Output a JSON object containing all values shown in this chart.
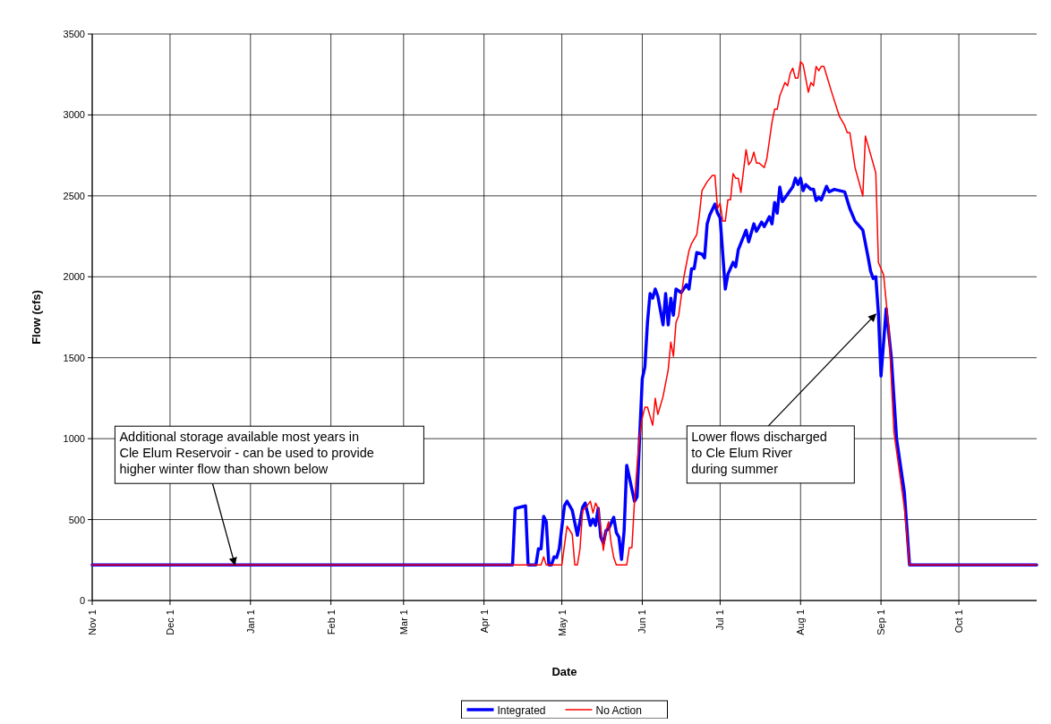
{
  "chart_data": {
    "type": "line",
    "xlabel": "Date",
    "ylabel": "Flow (cfs)",
    "xlim": [
      "2000-11-01",
      "2001-10-31"
    ],
    "xticks": [
      {
        "value": "2000-11-01",
        "label": "Nov 1"
      },
      {
        "value": "2000-12-01",
        "label": "Dec 1"
      },
      {
        "value": "2001-01-01",
        "label": "Jan 1"
      },
      {
        "value": "2001-02-01",
        "label": "Feb 1"
      },
      {
        "value": "2001-03-01",
        "label": "Mar 1"
      },
      {
        "value": "2001-04-01",
        "label": "Apr 1"
      },
      {
        "value": "2001-05-01",
        "label": "May 1"
      },
      {
        "value": "2001-06-01",
        "label": "Jun 1"
      },
      {
        "value": "2001-07-01",
        "label": "Jul 1"
      },
      {
        "value": "2001-08-01",
        "label": "Aug 1"
      },
      {
        "value": "2001-09-01",
        "label": "Sep 1"
      },
      {
        "value": "2001-10-01",
        "label": "Oct 1"
      }
    ],
    "ylim": [
      0,
      3500
    ],
    "yticks": [
      0,
      500,
      1000,
      1500,
      2000,
      2500,
      3000,
      3500
    ],
    "grid": true,
    "legend": "bottom",
    "marker": "none",
    "line_style": "solid",
    "series": [
      {
        "name": "Integrated",
        "color": "#0000ff",
        "x": [
          "2000-11-01",
          "2001-04-12",
          "2001-04-13",
          "2001-04-17",
          "2001-04-18",
          "2001-04-21",
          "2001-04-22",
          "2001-04-23",
          "2001-04-24",
          "2001-04-25",
          "2001-04-26",
          "2001-04-27",
          "2001-04-28",
          "2001-04-29",
          "2001-04-30",
          "2001-05-02",
          "2001-05-03",
          "2001-05-05",
          "2001-05-07",
          "2001-05-09",
          "2001-05-10",
          "2001-05-12",
          "2001-05-13",
          "2001-05-14",
          "2001-05-15",
          "2001-05-16",
          "2001-05-17",
          "2001-05-18",
          "2001-05-19",
          "2001-05-21",
          "2001-05-22",
          "2001-05-23",
          "2001-05-24",
          "2001-05-25",
          "2001-05-26",
          "2001-05-29",
          "2001-05-30",
          "2001-05-31",
          "2001-06-01",
          "2001-06-02",
          "2001-06-03",
          "2001-06-04",
          "2001-06-05",
          "2001-06-06",
          "2001-06-07",
          "2001-06-09",
          "2001-06-10",
          "2001-06-11",
          "2001-06-12",
          "2001-06-13",
          "2001-06-14",
          "2001-06-16",
          "2001-06-18",
          "2001-06-19",
          "2001-06-20",
          "2001-06-21",
          "2001-06-22",
          "2001-06-24",
          "2001-06-25",
          "2001-06-26",
          "2001-06-27",
          "2001-06-29",
          "2001-06-30",
          "2001-07-01",
          "2001-07-03",
          "2001-07-04",
          "2001-07-06",
          "2001-07-07",
          "2001-07-08",
          "2001-07-11",
          "2001-07-12",
          "2001-07-14",
          "2001-07-15",
          "2001-07-17",
          "2001-07-18",
          "2001-07-20",
          "2001-07-21",
          "2001-07-22",
          "2001-07-23",
          "2001-07-24",
          "2001-07-25",
          "2001-07-27",
          "2001-07-29",
          "2001-07-30",
          "2001-07-31",
          "2001-08-01",
          "2001-08-02",
          "2001-08-03",
          "2001-08-05",
          "2001-08-06",
          "2001-08-07",
          "2001-08-08",
          "2001-08-09",
          "2001-08-11",
          "2001-08-12",
          "2001-08-14",
          "2001-08-18",
          "2001-08-20",
          "2001-08-22",
          "2001-08-25",
          "2001-08-27",
          "2001-08-28",
          "2001-08-29",
          "2001-08-30",
          "2001-08-31",
          "2001-09-01",
          "2001-09-03",
          "2001-09-05",
          "2001-09-07",
          "2001-09-10",
          "2001-09-12",
          "2001-10-31"
        ],
        "values": [
          220,
          220,
          569,
          585,
          220,
          220,
          320,
          320,
          520,
          486,
          220,
          220,
          270,
          265,
          320,
          585,
          613,
          558,
          403,
          575,
          602,
          464,
          503,
          464,
          569,
          392,
          354,
          431,
          442,
          514,
          420,
          392,
          254,
          431,
          835,
          613,
          641,
          1017,
          1371,
          1443,
          1719,
          1896,
          1868,
          1924,
          1880,
          1703,
          1896,
          1703,
          1868,
          1763,
          1924,
          1902,
          1951,
          1924,
          2050,
          2050,
          2150,
          2140,
          2117,
          2327,
          2382,
          2449,
          2393,
          2365,
          1924,
          2016,
          2089,
          2062,
          2167,
          2288,
          2216,
          2327,
          2281,
          2338,
          2310,
          2371,
          2327,
          2459,
          2393,
          2554,
          2465,
          2510,
          2556,
          2609,
          2570,
          2609,
          2532,
          2570,
          2540,
          2540,
          2471,
          2490,
          2475,
          2559,
          2525,
          2540,
          2525,
          2421,
          2344,
          2288,
          2123,
          2034,
          1990,
          2000,
          1774,
          1387,
          1802,
          1498,
          1000,
          669,
          220,
          220
        ]
      },
      {
        "name": "No Action",
        "color": "#ff0000",
        "x": [
          "2000-11-01",
          "2001-04-23",
          "2001-04-24",
          "2001-04-25",
          "2001-05-01",
          "2001-05-03",
          "2001-05-05",
          "2001-05-06",
          "2001-05-07",
          "2001-05-08",
          "2001-05-09",
          "2001-05-10",
          "2001-05-12",
          "2001-05-13",
          "2001-05-14",
          "2001-05-15",
          "2001-05-17",
          "2001-05-18",
          "2001-05-19",
          "2001-05-20",
          "2001-05-21",
          "2001-05-22",
          "2001-05-26",
          "2001-05-27",
          "2001-05-28",
          "2001-05-29",
          "2001-05-30",
          "2001-05-31",
          "2001-06-01",
          "2001-06-02",
          "2001-06-03",
          "2001-06-05",
          "2001-06-06",
          "2001-06-07",
          "2001-06-09",
          "2001-06-11",
          "2001-06-12",
          "2001-06-13",
          "2001-06-14",
          "2001-06-15",
          "2001-06-17",
          "2001-06-19",
          "2001-06-20",
          "2001-06-22",
          "2001-06-23",
          "2001-06-24",
          "2001-06-26",
          "2001-06-28",
          "2001-06-29",
          "2001-06-30",
          "2001-07-01",
          "2001-07-02",
          "2001-07-03",
          "2001-07-04",
          "2001-07-05",
          "2001-07-06",
          "2001-07-07",
          "2001-07-08",
          "2001-07-09",
          "2001-07-11",
          "2001-07-12",
          "2001-07-13",
          "2001-07-14",
          "2001-07-15",
          "2001-07-16",
          "2001-07-18",
          "2001-07-19",
          "2001-07-21",
          "2001-07-22",
          "2001-07-23",
          "2001-07-24",
          "2001-07-26",
          "2001-07-27",
          "2001-07-28",
          "2001-07-29",
          "2001-07-30",
          "2001-07-31",
          "2001-08-01",
          "2001-08-02",
          "2001-08-04",
          "2001-08-05",
          "2001-08-06",
          "2001-08-07",
          "2001-08-08",
          "2001-08-09",
          "2001-08-10",
          "2001-08-13",
          "2001-08-16",
          "2001-08-18",
          "2001-08-19",
          "2001-08-20",
          "2001-08-22",
          "2001-08-25",
          "2001-08-26",
          "2001-08-30",
          "2001-08-31",
          "2001-09-02",
          "2001-09-04",
          "2001-09-06",
          "2001-09-10",
          "2001-09-12",
          "2001-10-31"
        ],
        "values": [
          220,
          220,
          270,
          220,
          220,
          459,
          409,
          220,
          220,
          320,
          558,
          569,
          613,
          541,
          602,
          569,
          310,
          431,
          486,
          354,
          265,
          220,
          220,
          326,
          326,
          613,
          835,
          1017,
          1128,
          1194,
          1194,
          1083,
          1249,
          1150,
          1260,
          1426,
          1597,
          1509,
          1719,
          1758,
          1996,
          2161,
          2206,
          2261,
          2382,
          2532,
          2587,
          2626,
          2626,
          2421,
          2454,
          2344,
          2344,
          2476,
          2476,
          2637,
          2609,
          2609,
          2521,
          2786,
          2692,
          2714,
          2770,
          2703,
          2703,
          2675,
          2730,
          2955,
          3035,
          3035,
          3118,
          3200,
          3180,
          3256,
          3289,
          3228,
          3228,
          3328,
          3310,
          3140,
          3200,
          3180,
          3300,
          3273,
          3300,
          3300,
          3140,
          2990,
          2935,
          2891,
          2891,
          2675,
          2499,
          2869,
          2642,
          2089,
          2012,
          1680,
          1039,
          575,
          220,
          220
        ]
      }
    ],
    "annotations": [
      {
        "text": "Additional storage available most years in\nCle Elum Reservoir - can be used to provide\nhigher winter flow than shown below",
        "x": "2000-12-26",
        "y": 220
      },
      {
        "text": "Lower flows discharged\nto Cle Elum River\nduring summer",
        "x": "2001-08-30",
        "y": 1770
      }
    ]
  }
}
